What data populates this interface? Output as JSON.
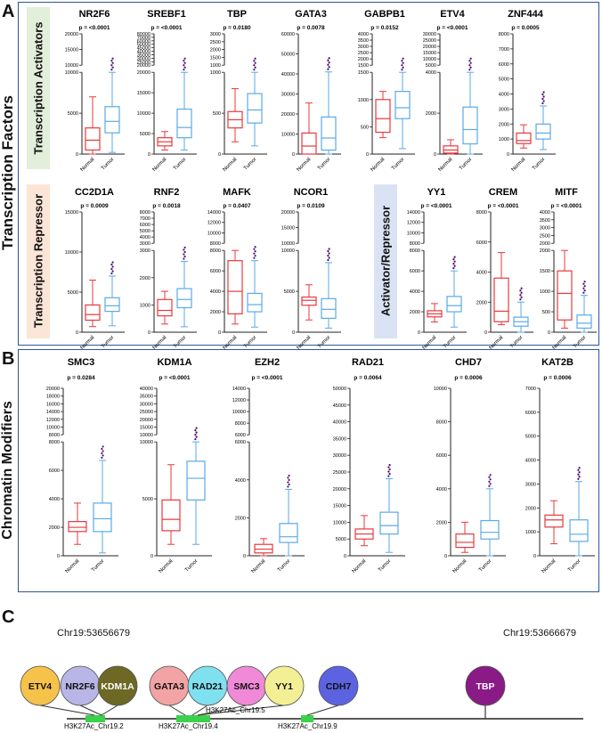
{
  "panels": {
    "a": {
      "letter": "A",
      "side_label": "Transcription Factors",
      "group_activators": "Transcription Activators",
      "group_repressor": "Transcription Repressor",
      "group_activator_repressor": "Activator/Repressor"
    },
    "b": {
      "letter": "B",
      "side_label": "Chromatin Modifiers"
    },
    "c": {
      "letter": "C",
      "coord_left": "Chr19:53656679",
      "coord_right": "Chr19:53666679"
    }
  },
  "colors": {
    "normal": "#e8383d",
    "tumor": "#5aaae6",
    "outlier": "#4b0a6e",
    "frame": "#2f5597",
    "band_green": "#e2efda",
    "band_orange": "#fbe5d6",
    "band_blue": "#dae3f3"
  },
  "x_categories": [
    "Normal",
    "Tumor"
  ],
  "chart_data": [
    {
      "type": "box",
      "title": "NR2F6",
      "pvalue": "p = <0.0001",
      "axis_break": true,
      "ticks_low": [
        "0",
        "5000",
        "10000"
      ],
      "ticks_high": [
        "10000",
        "15000",
        "20000"
      ],
      "normal": {
        "min": 0,
        "q1": 500,
        "median": 1700,
        "q3": 3200,
        "max": 7000
      },
      "tumor": {
        "min": 200,
        "q1": 2600,
        "median": 4000,
        "q3": 5800,
        "max": 10000
      }
    },
    {
      "type": "box",
      "title": "SREBF1",
      "pvalue": "p = <0.0001",
      "axis_break": true,
      "ticks_low": [
        "0",
        "5000",
        "10000",
        "15000",
        "20000"
      ],
      "ticks_high": [
        "20000",
        "25000",
        "30000",
        "35000",
        "40000",
        "45000",
        "50000",
        "60000",
        "70000",
        "80000"
      ],
      "normal": {
        "min": 1000,
        "q1": 2000,
        "median": 3000,
        "q3": 4000,
        "max": 5500
      },
      "tumor": {
        "min": 1000,
        "q1": 4000,
        "median": 6500,
        "q3": 11000,
        "max": 20000
      }
    },
    {
      "type": "box",
      "title": "TBP",
      "pvalue": "p = 0.0180",
      "axis_break": true,
      "ticks_low": [
        "0",
        "500",
        "1000"
      ],
      "ticks_high": [
        "1000",
        "1500",
        "2000",
        "2500",
        "3000"
      ],
      "normal": {
        "min": 150,
        "q1": 320,
        "median": 420,
        "q3": 520,
        "max": 800
      },
      "tumor": {
        "min": 100,
        "q1": 380,
        "median": 540,
        "q3": 740,
        "max": 1000
      }
    },
    {
      "type": "box",
      "title": "GATA3",
      "pvalue": "p = 0.0078",
      "axis_break": false,
      "ticks_low": [
        "0",
        "10000",
        "20000",
        "30000",
        "40000",
        "50000",
        "60000"
      ],
      "ticks_high": [],
      "normal": {
        "min": 0,
        "q1": 0,
        "median": 4000,
        "q3": 10500,
        "max": 25500
      },
      "tumor": {
        "min": 0,
        "q1": 2000,
        "median": 8000,
        "q3": 18500,
        "max": 41000
      }
    },
    {
      "type": "box",
      "title": "GABPB1",
      "pvalue": "p = 0.0152",
      "axis_break": true,
      "ticks_low": [
        "0",
        "500",
        "1000",
        "1500"
      ],
      "ticks_high": [
        "1500",
        "2000",
        "2500",
        "3000",
        "3500",
        "4000"
      ],
      "normal": {
        "min": 300,
        "q1": 400,
        "median": 650,
        "q3": 1000,
        "max": 1150
      },
      "tumor": {
        "min": 100,
        "q1": 650,
        "median": 850,
        "q3": 1150,
        "max": 1500
      }
    },
    {
      "type": "box",
      "title": "ETV4",
      "pvalue": "p = <0.0001",
      "axis_break": true,
      "ticks_low": [
        "0",
        "2000",
        "4000"
      ],
      "ticks_high": [
        "5000",
        "10000",
        "15000",
        "20000",
        "25000",
        "30000"
      ],
      "normal": {
        "min": 0,
        "q1": 50,
        "median": 200,
        "q3": 400,
        "max": 700
      },
      "tumor": {
        "min": 0,
        "q1": 500,
        "median": 1200,
        "q3": 2300,
        "max": 5000
      }
    },
    {
      "type": "box",
      "title": "ZNF444",
      "pvalue": "p = 0.0005",
      "axis_break": false,
      "ticks_low": [
        "0",
        "1000",
        "2000",
        "3000",
        "4000",
        "5000",
        "6000",
        "7000",
        "8000"
      ],
      "ticks_high": [],
      "normal": {
        "min": 400,
        "q1": 700,
        "median": 900,
        "q3": 1400,
        "max": 1950
      },
      "tumor": {
        "min": 300,
        "q1": 1000,
        "median": 1400,
        "q3": 2000,
        "max": 3200
      }
    },
    {
      "type": "box",
      "title": "CC2D1A",
      "pvalue": "p = 0.0009",
      "axis_break": false,
      "ticks_low": [
        "0",
        "5000",
        "10000",
        "15000"
      ],
      "ticks_high": [],
      "normal": {
        "min": 700,
        "q1": 1500,
        "median": 2200,
        "q3": 3400,
        "max": 6500
      },
      "tumor": {
        "min": 800,
        "q1": 2600,
        "median": 3300,
        "q3": 4300,
        "max": 7000
      }
    },
    {
      "type": "box",
      "title": "RNF2",
      "pvalue": "p = 0.0018",
      "axis_break": true,
      "ticks_low": [
        "0",
        "1000",
        "2000",
        "3000"
      ],
      "ticks_high": [
        "3000",
        "4000",
        "5000",
        "6000",
        "7000",
        "8000"
      ],
      "normal": {
        "min": 300,
        "q1": 600,
        "median": 800,
        "q3": 1200,
        "max": 1500
      },
      "tumor": {
        "min": 200,
        "q1": 900,
        "median": 1200,
        "q3": 1600,
        "max": 2600
      }
    },
    {
      "type": "box",
      "title": "MAFK",
      "pvalue": "p = 0.0407",
      "axis_break": true,
      "ticks_low": [
        "0",
        "2000",
        "4000",
        "6000",
        "8000"
      ],
      "ticks_high": [
        "8000",
        "10000",
        "12000",
        "14000"
      ],
      "normal": {
        "min": 800,
        "q1": 1800,
        "median": 4000,
        "q3": 7000,
        "max": 8000
      },
      "tumor": {
        "min": 500,
        "q1": 2000,
        "median": 2700,
        "q3": 3800,
        "max": 7000
      }
    },
    {
      "type": "box",
      "title": "NCOR1",
      "pvalue": "p = 0.0109",
      "axis_break": true,
      "ticks_low": [
        "0",
        "5000",
        "10000"
      ],
      "ticks_high": [
        "10000",
        "15000",
        "20000"
      ],
      "normal": {
        "min": 1500,
        "q1": 3300,
        "median": 3900,
        "q3": 4300,
        "max": 5800
      },
      "tumor": {
        "min": 500,
        "q1": 1700,
        "median": 2800,
        "q3": 4100,
        "max": 8500
      }
    },
    {
      "type": "box",
      "title": "YY1",
      "pvalue": "p = <0.0001",
      "axis_break": true,
      "ticks_low": [
        "0",
        "2000",
        "4000",
        "6000",
        "8000"
      ],
      "ticks_high": [
        "8000",
        "10000",
        "12000",
        "14000"
      ],
      "normal": {
        "min": 1000,
        "q1": 1500,
        "median": 1800,
        "q3": 2100,
        "max": 2800
      },
      "tumor": {
        "min": 500,
        "q1": 2000,
        "median": 2600,
        "q3": 3500,
        "max": 6000
      }
    },
    {
      "type": "box",
      "title": "CREM",
      "pvalue": "p = <0.0001",
      "axis_break": false,
      "ticks_low": [
        "0",
        "2000",
        "4000",
        "6000",
        "8000"
      ],
      "ticks_high": [],
      "normal": {
        "min": 500,
        "q1": 700,
        "median": 1400,
        "q3": 3600,
        "max": 5300
      },
      "tumor": {
        "min": 0,
        "q1": 400,
        "median": 700,
        "q3": 1000,
        "max": 2000
      }
    },
    {
      "type": "box",
      "title": "MITF",
      "pvalue": "p = <0.0001",
      "axis_break": true,
      "ticks_low": [
        "0",
        "500",
        "1000",
        "1500",
        "2000"
      ],
      "ticks_high": [
        "2000",
        "2500",
        "3000",
        "3500",
        "4000"
      ],
      "normal": {
        "min": 100,
        "q1": 300,
        "median": 950,
        "q3": 1500,
        "max": 2100
      },
      "tumor": {
        "min": 0,
        "q1": 100,
        "median": 220,
        "q3": 420,
        "max": 900
      }
    },
    {
      "type": "box",
      "title": "SMC3",
      "pvalue": "p = 0.0284",
      "axis_break": true,
      "ticks_low": [
        "0",
        "2000",
        "4000",
        "6000",
        "8000"
      ],
      "ticks_high": [
        "8000",
        "10000",
        "12000",
        "14000",
        "16000",
        "18000",
        "20000"
      ],
      "normal": {
        "min": 800,
        "q1": 1700,
        "median": 2000,
        "q3": 2400,
        "max": 3700
      },
      "tumor": {
        "min": 200,
        "q1": 1700,
        "median": 2600,
        "q3": 3700,
        "max": 6700
      }
    },
    {
      "type": "box",
      "title": "KDM1A",
      "pvalue": "p = <0.0001",
      "axis_break": true,
      "ticks_low": [
        "0",
        "5000",
        "10000"
      ],
      "ticks_high": [
        "10000",
        "15000",
        "20000",
        "25000",
        "30000",
        "35000",
        "40000"
      ],
      "normal": {
        "min": 1000,
        "q1": 2200,
        "median": 3200,
        "q3": 4900,
        "max": 8000
      },
      "tumor": {
        "min": 1000,
        "q1": 4900,
        "median": 6800,
        "q3": 8300,
        "max": 13000
      }
    },
    {
      "type": "box",
      "title": "EZH2",
      "pvalue": "p = <0.0001",
      "axis_break": true,
      "ticks_low": [
        "0",
        "2000",
        "4000",
        "6000"
      ],
      "ticks_high": [
        "6000",
        "8000",
        "10000",
        "12000",
        "14000"
      ],
      "normal": {
        "min": 0,
        "q1": 150,
        "median": 350,
        "q3": 600,
        "max": 900
      },
      "tumor": {
        "min": 0,
        "q1": 700,
        "median": 1000,
        "q3": 1700,
        "max": 3500
      }
    },
    {
      "type": "box",
      "title": "RAD21",
      "pvalue": "p = 0.0064",
      "axis_break": false,
      "ticks_low": [
        "0",
        "5000",
        "10000",
        "15000",
        "20000",
        "25000",
        "30000",
        "35000",
        "40000",
        "45000",
        "50000"
      ],
      "ticks_high": [],
      "normal": {
        "min": 3000,
        "q1": 5000,
        "median": 6500,
        "q3": 8000,
        "max": 12000
      },
      "tumor": {
        "min": 1000,
        "q1": 6500,
        "median": 9000,
        "q3": 13000,
        "max": 23000
      }
    },
    {
      "type": "box",
      "title": "CHD7",
      "pvalue": "p = 0.0006",
      "axis_break": false,
      "ticks_low": [
        "0",
        "2000",
        "4000",
        "6000",
        "8000",
        "10000"
      ],
      "ticks_high": [],
      "normal": {
        "min": 200,
        "q1": 500,
        "median": 800,
        "q3": 1300,
        "max": 2000
      },
      "tumor": {
        "min": 0,
        "q1": 1000,
        "median": 1400,
        "q3": 2100,
        "max": 4000
      }
    },
    {
      "type": "box",
      "title": "KAT2B",
      "pvalue": "p = 0.0006",
      "axis_break": false,
      "ticks_low": [
        "0",
        "1000",
        "2000",
        "3000",
        "4000",
        "5000",
        "6000",
        "7000"
      ],
      "ticks_high": [],
      "normal": {
        "min": 500,
        "q1": 1200,
        "median": 1500,
        "q3": 1700,
        "max": 2300
      },
      "tumor": {
        "min": 0,
        "q1": 600,
        "median": 900,
        "q3": 1500,
        "max": 3100
      }
    }
  ],
  "genome_track": {
    "circles": [
      {
        "label": "ETV4",
        "color": "#f6c24a"
      },
      {
        "label": "NR2F6",
        "color": "#b8b6e6"
      },
      {
        "label": "KDM1A",
        "color": "#6d6823"
      },
      {
        "label": "GATA3",
        "color": "#f3a3a3"
      },
      {
        "label": "RAD21",
        "color": "#7fe0f0"
      },
      {
        "label": "SMC3",
        "color": "#f08ad8"
      },
      {
        "label": "YY1",
        "color": "#f3ef94"
      },
      {
        "label": "CDH7",
        "color": "#5c63e0"
      },
      {
        "label": "TBP",
        "color": "#8a1a86"
      }
    ],
    "peaks": [
      {
        "label": "H3K27Ac_Chr19.2"
      },
      {
        "label": "H3K27Ac_Chr19.4"
      },
      {
        "label": "H3K27Ac_Chr19.5"
      },
      {
        "label": "H3K27Ac_Chr19.9"
      }
    ]
  }
}
